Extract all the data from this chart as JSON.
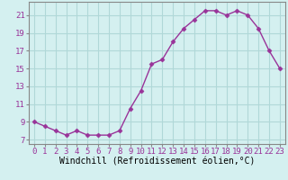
{
  "x": [
    0,
    1,
    2,
    3,
    4,
    5,
    6,
    7,
    8,
    9,
    10,
    11,
    12,
    13,
    14,
    15,
    16,
    17,
    18,
    19,
    20,
    21,
    22,
    23
  ],
  "y": [
    9.0,
    8.5,
    8.0,
    7.5,
    8.0,
    7.5,
    7.5,
    7.5,
    8.0,
    10.5,
    12.5,
    15.5,
    16.0,
    18.0,
    19.5,
    20.5,
    21.5,
    21.5,
    21.0,
    21.5,
    21.0,
    19.5,
    17.0,
    15.0
  ],
  "xlim": [
    -0.5,
    23.5
  ],
  "ylim": [
    6.5,
    22.5
  ],
  "yticks": [
    7,
    9,
    11,
    13,
    15,
    17,
    19,
    21
  ],
  "xticks": [
    0,
    1,
    2,
    3,
    4,
    5,
    6,
    7,
    8,
    9,
    10,
    11,
    12,
    13,
    14,
    15,
    16,
    17,
    18,
    19,
    20,
    21,
    22,
    23
  ],
  "xlabel": "Windchill (Refroidissement éolien,°C)",
  "line_color": "#993399",
  "marker": "D",
  "marker_size": 2.5,
  "bg_color": "#d4f0f0",
  "grid_color": "#b0d8d8",
  "tick_label_fontsize": 6.5,
  "xlabel_fontsize": 7.0
}
